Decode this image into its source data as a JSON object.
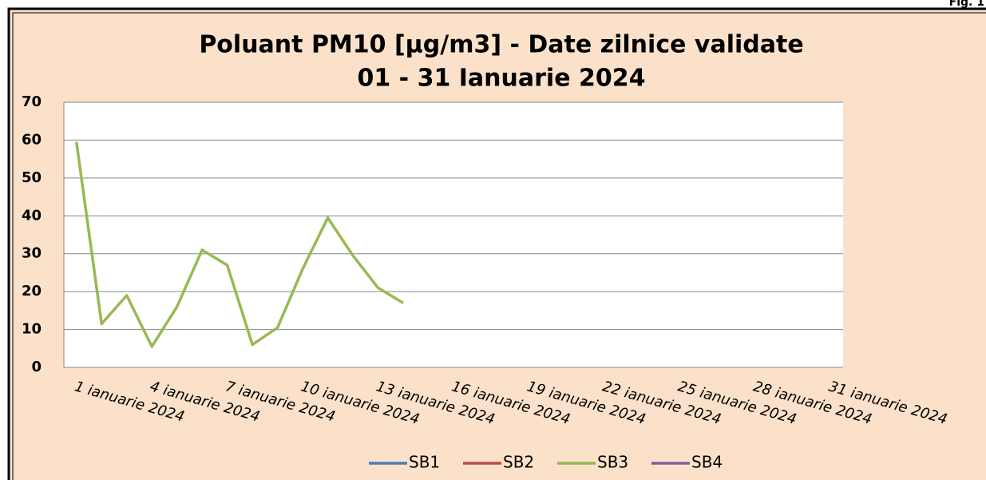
{
  "figure_label": "Fig. 1",
  "chart_data": {
    "type": "line",
    "title": "Poluant PM10 [µg/m3] - Date zilnice validate",
    "subtitle": "01 - 31 Ianuarie  2024",
    "categories": [
      "1 ianuarie 2024",
      null,
      null,
      "4 ianuarie 2024",
      null,
      null,
      "7 ianuarie 2024",
      null,
      null,
      "10 ianuarie 2024",
      null,
      null,
      "13 ianuarie 2024",
      null,
      null,
      "16 ianuarie 2024",
      null,
      null,
      "19 ianuarie 2024",
      null,
      null,
      "22 ianuarie 2024",
      null,
      null,
      "25 ianuarie 2024",
      null,
      null,
      "28 ianuarie 2024",
      null,
      null,
      "31 ianuarie 2024"
    ],
    "series": [
      {
        "name": "SB1",
        "color": "#4a7ebb",
        "values": [
          null,
          null,
          null,
          null,
          null,
          null,
          null,
          null,
          null,
          null,
          null,
          null,
          null,
          null,
          null,
          null,
          null,
          null,
          null,
          null,
          null,
          null,
          null,
          null,
          null,
          null,
          null,
          null,
          null,
          null,
          null
        ]
      },
      {
        "name": "SB2",
        "color": "#be4b48",
        "values": [
          null,
          null,
          null,
          null,
          null,
          null,
          null,
          null,
          null,
          null,
          null,
          null,
          null,
          null,
          null,
          null,
          null,
          null,
          null,
          null,
          null,
          null,
          null,
          null,
          null,
          null,
          null,
          null,
          null,
          null,
          null
        ]
      },
      {
        "name": "SB3",
        "color": "#98b954",
        "values": [
          59.5,
          11.5,
          19,
          5.5,
          16,
          31,
          27,
          6,
          10.5,
          26,
          39.5,
          29.5,
          21,
          17,
          null,
          null,
          null,
          null,
          null,
          null,
          null,
          null,
          null,
          null,
          null,
          null,
          null,
          null,
          null,
          null,
          null
        ]
      },
      {
        "name": "SB4",
        "color": "#7d60a0",
        "values": [
          null,
          null,
          null,
          null,
          null,
          null,
          null,
          null,
          null,
          null,
          null,
          null,
          null,
          null,
          null,
          null,
          null,
          null,
          null,
          null,
          null,
          null,
          null,
          null,
          null,
          null,
          null,
          null,
          null,
          null,
          null
        ]
      }
    ],
    "ylim": [
      0,
      70
    ],
    "yticks": [
      0,
      10,
      20,
      30,
      40,
      50,
      60,
      70
    ],
    "grid": true,
    "legend": "bottom"
  }
}
